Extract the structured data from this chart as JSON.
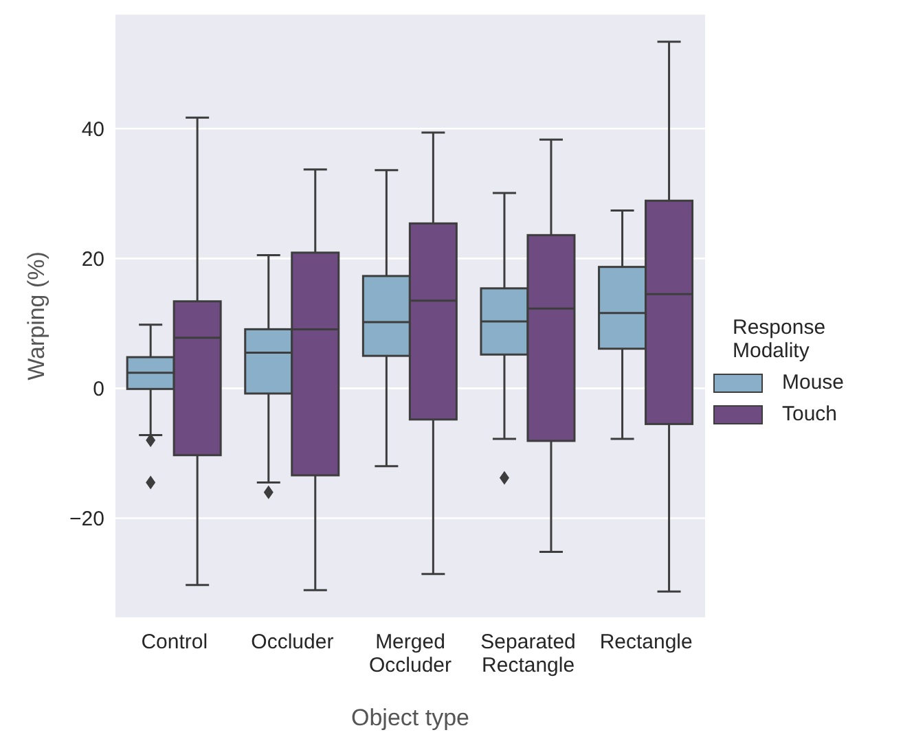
{
  "chart_data": {
    "type": "box",
    "xlabel": "Object type",
    "ylabel": "Warping (%)",
    "legend_title": "Response Modality",
    "categories": [
      "Control",
      "Occluder",
      "Merged Occluder",
      "Separated Rectangle",
      "Rectangle"
    ],
    "series": [
      {
        "name": "Mouse",
        "color": "#89b0c8",
        "boxes": [
          {
            "low": -7.2,
            "q1": -0.1,
            "median": 2.4,
            "q3": 4.8,
            "high": 9.8,
            "outliers": [
              -8.0,
              -14.5
            ]
          },
          {
            "low": -14.5,
            "q1": -0.8,
            "median": 5.5,
            "q3": 9.1,
            "high": 20.5,
            "outliers": [
              -16.0
            ]
          },
          {
            "low": -12.0,
            "q1": 5.0,
            "median": 10.2,
            "q3": 17.3,
            "high": 33.6
          },
          {
            "low": -7.8,
            "q1": 5.2,
            "median": 10.3,
            "q3": 15.4,
            "high": 30.1,
            "outliers": [
              -13.8
            ]
          },
          {
            "low": -7.8,
            "q1": 6.1,
            "median": 11.6,
            "q3": 18.7,
            "high": 27.4
          }
        ]
      },
      {
        "name": "Touch",
        "color": "#6e4c82",
        "boxes": [
          {
            "low": -30.3,
            "q1": -10.3,
            "median": 7.8,
            "q3": 13.4,
            "high": 41.7
          },
          {
            "low": -31.1,
            "q1": -13.4,
            "median": 9.1,
            "q3": 20.9,
            "high": 33.7
          },
          {
            "low": -28.6,
            "q1": -4.8,
            "median": 13.5,
            "q3": 25.4,
            "high": 39.4
          },
          {
            "low": -25.2,
            "q1": -8.1,
            "median": 12.3,
            "q3": 23.6,
            "high": 38.3
          },
          {
            "low": -31.3,
            "q1": -5.5,
            "median": 14.5,
            "q3": 28.9,
            "high": 53.4
          }
        ]
      }
    ],
    "ylim": [
      -35.4,
      57.7
    ],
    "yticks": [
      -20,
      0,
      20,
      40
    ],
    "grid": "y",
    "legend": "right"
  }
}
